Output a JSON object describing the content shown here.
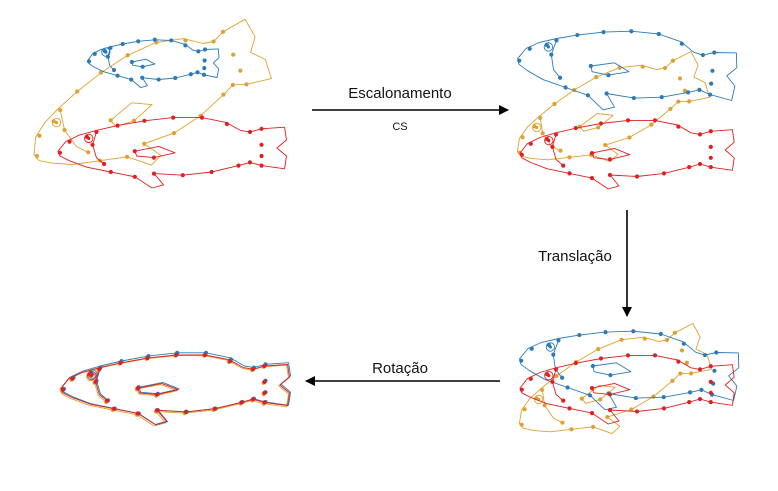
{
  "steps": [
    {
      "label": "Escalonamento",
      "sublabel": "CS"
    },
    {
      "label": "Translação"
    },
    {
      "label": "Rotação"
    }
  ],
  "colors": {
    "blue": "#2b7bb9",
    "orange": "#e0a030",
    "red": "#e02020",
    "arrow": "#000000"
  },
  "panels": [
    {
      "name": "original"
    },
    {
      "name": "scaled"
    },
    {
      "name": "translated"
    },
    {
      "name": "rotated"
    }
  ]
}
